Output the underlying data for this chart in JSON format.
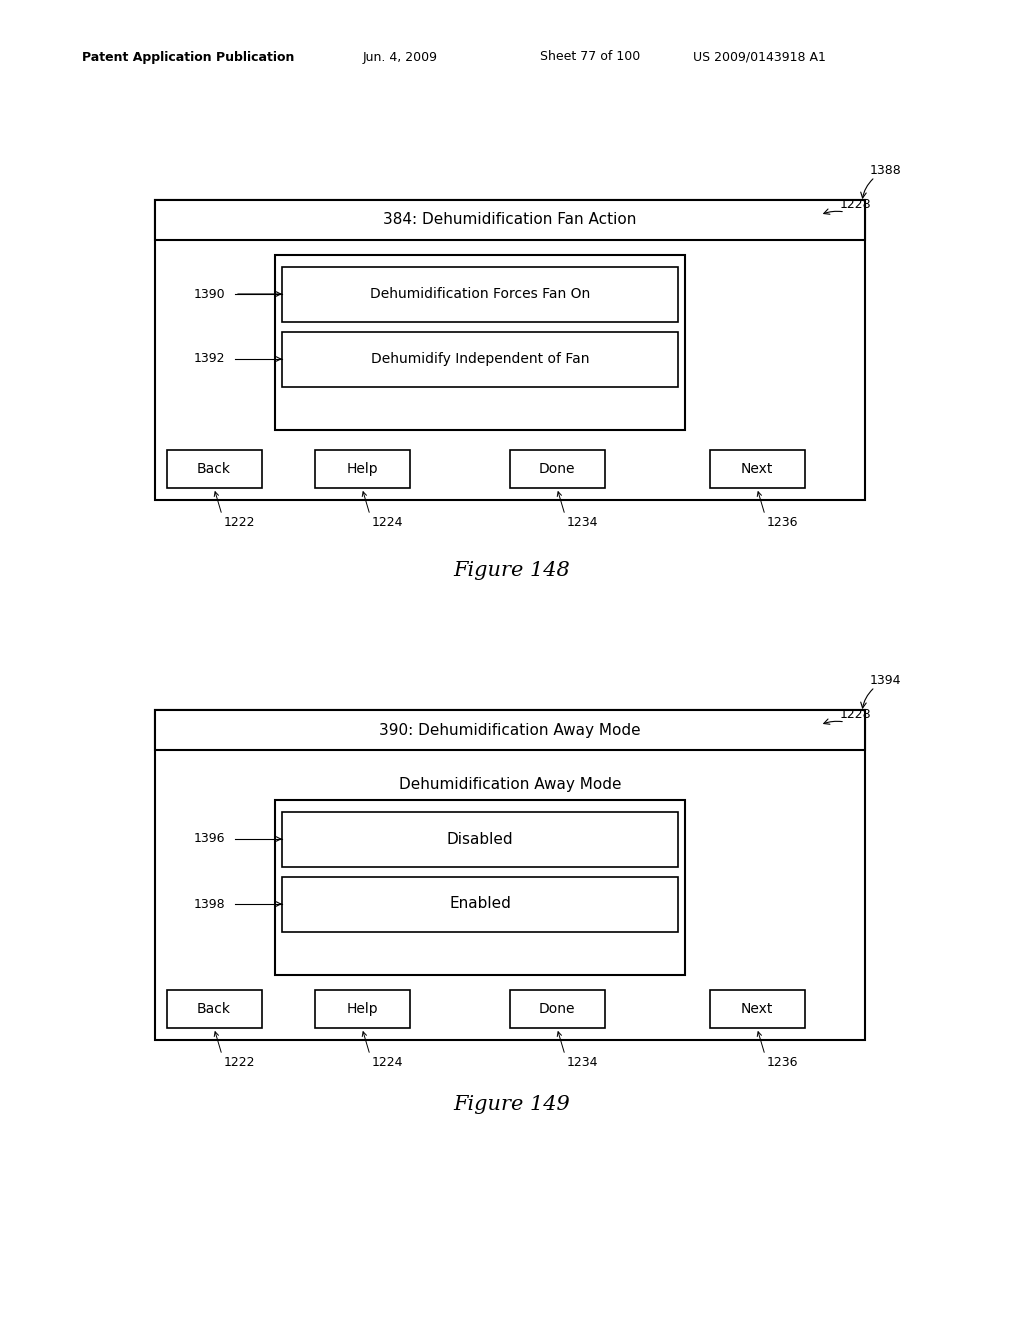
{
  "bg_color": "#ffffff",
  "header_text": "Patent Application Publication",
  "header_date": "Jun. 4, 2009",
  "header_sheet": "Sheet 77 of 100",
  "header_patent": "US 2009/0143918 A1",
  "fig1": {
    "title": "384: Dehumidification Fan Action",
    "items": [
      {
        "label": "Dehumidification Forces Fan On",
        "ref": "1390"
      },
      {
        "label": "Dehumidify Independent of Fan",
        "ref": "1392"
      }
    ],
    "buttons": [
      "Back",
      "Help",
      "Done",
      "Next"
    ],
    "button_refs": [
      "1222",
      "1224",
      "1234",
      "1236"
    ],
    "outer_ref": "1388",
    "title_ref": "1228",
    "figure_label": "Figure 148"
  },
  "fig2": {
    "title": "390: Dehumidification Away Mode",
    "subtitle": "Dehumidification Away Mode",
    "items": [
      {
        "label": "Disabled",
        "ref": "1396"
      },
      {
        "label": "Enabled",
        "ref": "1398"
      }
    ],
    "buttons": [
      "Back",
      "Help",
      "Done",
      "Next"
    ],
    "button_refs": [
      "1222",
      "1224",
      "1234",
      "1236"
    ],
    "outer_ref": "1394",
    "title_ref": "1228",
    "figure_label": "Figure 149"
  }
}
